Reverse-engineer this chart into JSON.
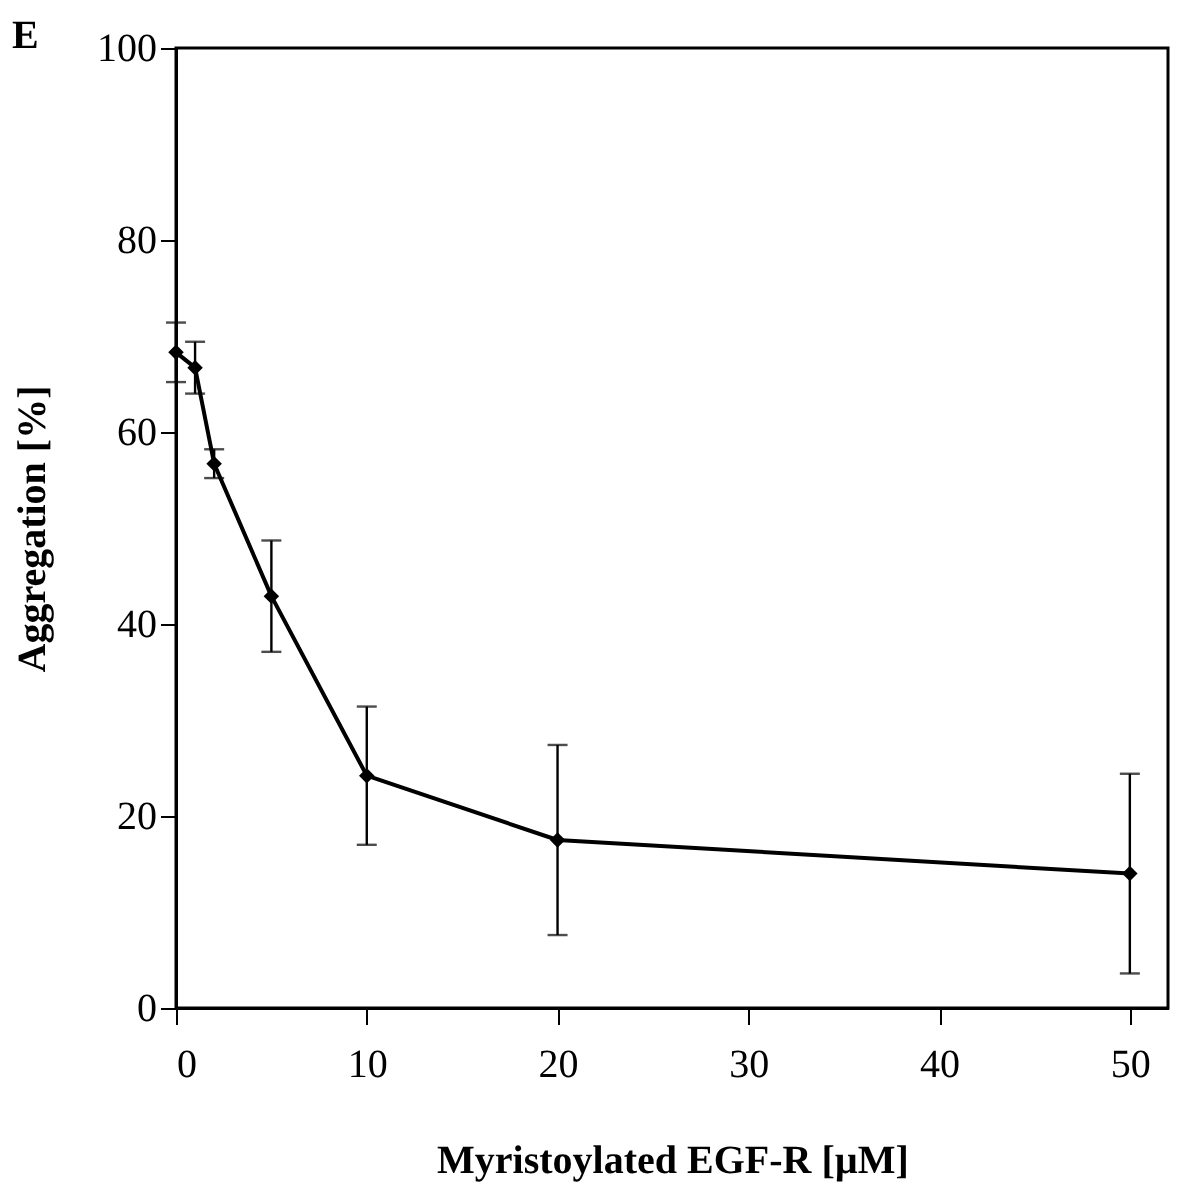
{
  "chart_data": {
    "type": "line",
    "title": "E",
    "xlabel": "Myristoylated EGF-R [µM]",
    "ylabel": "Aggregation [%]",
    "x": [
      0,
      1,
      2,
      5,
      10,
      20,
      50
    ],
    "series": [
      {
        "color": "#000000",
        "values": [
          68.3,
          66.7,
          56.7,
          42.9,
          24.2,
          17.5,
          14.0
        ],
        "errors": [
          3.1,
          2.7,
          1.5,
          5.8,
          7.2,
          9.9,
          10.4
        ]
      }
    ],
    "xlim": [
      0,
      52
    ],
    "xticks": [
      0,
      10,
      20,
      30,
      40,
      50
    ],
    "ylim": [
      0,
      100
    ],
    "yticks": [
      0,
      20,
      40,
      60,
      80,
      100
    ],
    "marker": "diamond",
    "line_style": "solid"
  }
}
